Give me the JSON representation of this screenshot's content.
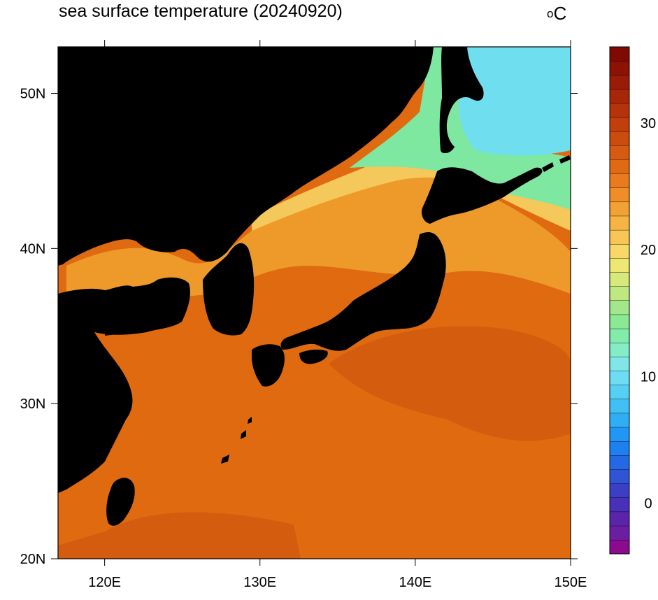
{
  "map": {
    "title": "sea surface temperature (20240920)",
    "units_label": "C",
    "units_degree": "o",
    "extent": {
      "lon": [
        117,
        150
      ],
      "lat": [
        20,
        53
      ]
    },
    "lon_ticks": [
      {
        "value": 120,
        "label": "120E"
      },
      {
        "value": 130,
        "label": "130E"
      },
      {
        "value": 140,
        "label": "140E"
      },
      {
        "value": 150,
        "label": "150E"
      }
    ],
    "lat_ticks": [
      {
        "value": 20,
        "label": "20N"
      },
      {
        "value": 30,
        "label": "30N"
      },
      {
        "value": 40,
        "label": "40N"
      },
      {
        "value": 50,
        "label": "50N"
      }
    ],
    "land_color": "#000000",
    "ocean_colors": {
      "warm": "#e06a10",
      "warmer": "#d45c0e",
      "mild": "#ee9a2a",
      "cool": "#f4c85a",
      "cold": "#7fe8a0",
      "colder": "#6fdff0"
    }
  },
  "colorbar": {
    "min": -4,
    "max": 36,
    "step": 1,
    "tick_labels": [
      {
        "value": 0,
        "label": "0"
      },
      {
        "value": 10,
        "label": "10"
      },
      {
        "value": 20,
        "label": "20"
      },
      {
        "value": 30,
        "label": "30"
      }
    ],
    "colors": [
      "#8b0a8e",
      "#6b1fa0",
      "#5a24ab",
      "#4a30b8",
      "#3b3fc6",
      "#2f55d6",
      "#2468e4",
      "#1e7ff0",
      "#2296f4",
      "#2fadf5",
      "#40c0f4",
      "#55d0f3",
      "#6edcf2",
      "#80e6e8",
      "#85ecc8",
      "#82ecaa",
      "#8ae992",
      "#a2e88a",
      "#bde882",
      "#d6e97a",
      "#ece872",
      "#f7d868",
      "#f7c656",
      "#f5b444",
      "#f2a134",
      "#ef8e28",
      "#e97b1e",
      "#e06a14",
      "#d65b10",
      "#cc4c0e",
      "#c23f0c",
      "#b6320a",
      "#a82608",
      "#9a1c06",
      "#8c1204",
      "#800a02"
    ]
  }
}
